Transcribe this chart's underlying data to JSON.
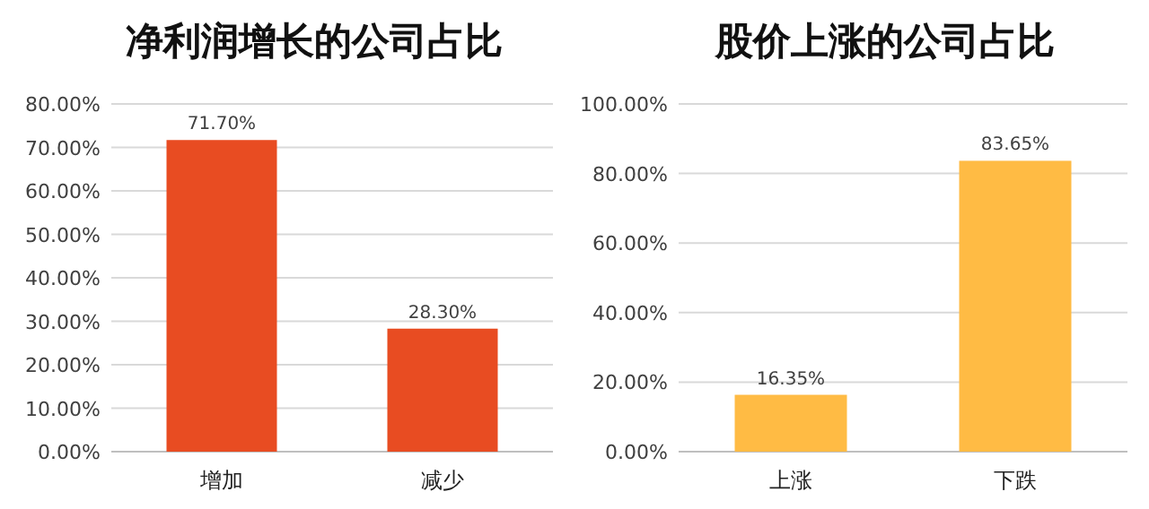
{
  "chart_data": [
    {
      "type": "bar",
      "title": "净利润增长的公司占比",
      "categories": [
        "增加",
        "减少"
      ],
      "values": [
        71.7,
        28.3
      ],
      "color": "#e84c22",
      "value_labels": [
        "71.70%",
        "28.30%"
      ],
      "ylim": [
        0,
        80
      ],
      "grid": "y",
      "yticks": [
        {
          "value": 0,
          "label": "0.00%"
        },
        {
          "value": 10,
          "label": "10.00%"
        },
        {
          "value": 20,
          "label": "20.00%"
        },
        {
          "value": 30,
          "label": "30.00%"
        },
        {
          "value": 40,
          "label": "40.00%"
        },
        {
          "value": 50,
          "label": "50.00%"
        },
        {
          "value": 60,
          "label": "60.00%"
        },
        {
          "value": 70,
          "label": "70.00%"
        },
        {
          "value": 80,
          "label": "80.00%"
        }
      ]
    },
    {
      "type": "bar",
      "title": "股价上涨的公司占比",
      "categories": [
        "上涨",
        "下跌"
      ],
      "values": [
        16.35,
        83.65
      ],
      "color": "#ffbb44",
      "value_labels": [
        "16.35%",
        "83.65%"
      ],
      "ylim": [
        0,
        100
      ],
      "grid": "y",
      "yticks": [
        {
          "value": 0,
          "label": "0.00%"
        },
        {
          "value": 20,
          "label": "20.00%"
        },
        {
          "value": 40,
          "label": "40.00%"
        },
        {
          "value": 60,
          "label": "60.00%"
        },
        {
          "value": 80,
          "label": "80.00%"
        },
        {
          "value": 100,
          "label": "100.00%"
        }
      ]
    }
  ]
}
